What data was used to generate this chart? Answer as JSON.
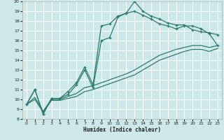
{
  "xlabel": "Humidex (Indice chaleur)",
  "bg_color": "#cce8e8",
  "grid_color": "#ffffff",
  "line_color": "#2d7a6e",
  "xlim": [
    -0.5,
    23.5
  ],
  "ylim": [
    8,
    20
  ],
  "xticks": [
    0,
    1,
    2,
    3,
    4,
    5,
    6,
    7,
    8,
    9,
    10,
    11,
    12,
    13,
    14,
    15,
    16,
    17,
    18,
    19,
    20,
    21,
    22,
    23
  ],
  "yticks": [
    8,
    9,
    10,
    11,
    12,
    13,
    14,
    15,
    16,
    17,
    18,
    19,
    20
  ],
  "line1_x": [
    0,
    1,
    2,
    3,
    4,
    5,
    6,
    7,
    8,
    9,
    10,
    11,
    12,
    13,
    14,
    15,
    16,
    17,
    18,
    19,
    20,
    21,
    22,
    23
  ],
  "line1_y": [
    9.5,
    11.0,
    8.5,
    10.1,
    10.1,
    10.8,
    11.7,
    13.3,
    11.5,
    17.5,
    17.7,
    18.5,
    18.8,
    20.0,
    19.0,
    18.5,
    18.2,
    17.8,
    17.6,
    17.6,
    17.1,
    16.9,
    16.8,
    16.6
  ],
  "line2_x": [
    0,
    1,
    2,
    3,
    4,
    5,
    6,
    7,
    8,
    9,
    10,
    11,
    12,
    13,
    14,
    15,
    16,
    17,
    18,
    19,
    20,
    21,
    22,
    23
  ],
  "line2_y": [
    9.5,
    11.0,
    8.5,
    10.1,
    10.1,
    10.5,
    11.5,
    13.0,
    11.2,
    16.0,
    16.3,
    18.4,
    18.8,
    19.0,
    18.6,
    18.2,
    17.7,
    17.5,
    17.2,
    17.5,
    17.5,
    17.2,
    16.7,
    15.5
  ],
  "line3_x": [
    0,
    1,
    2,
    3,
    4,
    5,
    6,
    7,
    8,
    9,
    10,
    11,
    12,
    13,
    14,
    15,
    16,
    17,
    18,
    19,
    20,
    21,
    22,
    23
  ],
  "line3_y": [
    9.5,
    10.2,
    8.8,
    10.0,
    10.0,
    10.3,
    10.6,
    11.2,
    11.4,
    11.7,
    12.0,
    12.3,
    12.6,
    13.0,
    13.5,
    14.0,
    14.5,
    14.8,
    15.1,
    15.3,
    15.5,
    15.5,
    15.3,
    15.5
  ],
  "line4_x": [
    0,
    1,
    2,
    3,
    4,
    5,
    6,
    7,
    8,
    9,
    10,
    11,
    12,
    13,
    14,
    15,
    16,
    17,
    18,
    19,
    20,
    21,
    22,
    23
  ],
  "line4_y": [
    9.5,
    10.0,
    8.7,
    9.9,
    9.9,
    10.1,
    10.3,
    10.8,
    11.0,
    11.3,
    11.6,
    11.9,
    12.2,
    12.5,
    13.0,
    13.5,
    14.0,
    14.3,
    14.6,
    14.9,
    15.1,
    15.1,
    14.9,
    15.2
  ]
}
